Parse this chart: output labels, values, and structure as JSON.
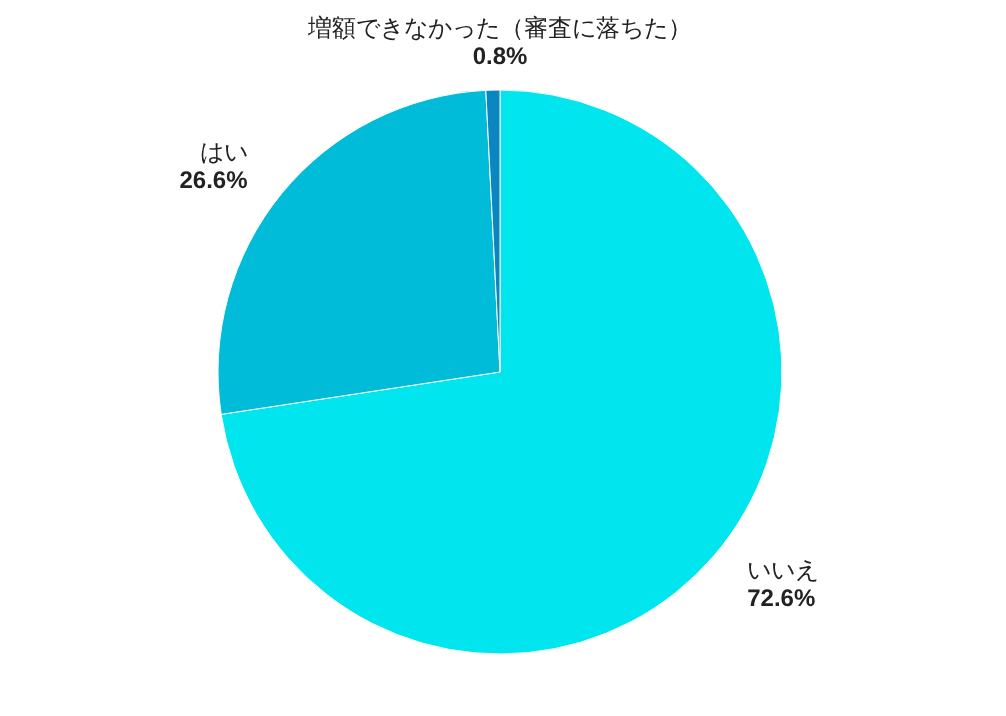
{
  "chart_data": {
    "type": "pie",
    "categories": [
      "いいえ",
      "はい",
      "増額できなかった（審査に落ちた）"
    ],
    "values": [
      72.6,
      26.6,
      0.8
    ],
    "value_labels": [
      "72.6%",
      "26.6%",
      "0.8%"
    ],
    "colors": [
      "#00e5ee",
      "#00bcd8",
      "#0a86c0"
    ],
    "legend": false
  }
}
